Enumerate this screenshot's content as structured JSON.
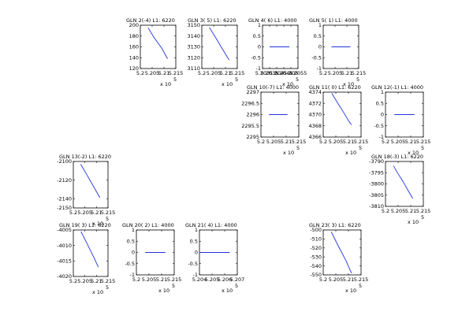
{
  "chart_data": [
    {
      "type": "line",
      "title": "GLN  2(-4) L1: 6220",
      "xlim": [
        5.2,
        5.215
      ],
      "ylim": [
        120,
        200
      ],
      "xticks": [
        "5.2",
        "5.205",
        "5.21",
        "5.215"
      ],
      "yticks": [
        "200",
        "180",
        "160",
        "140",
        "120"
      ],
      "x_multiplier": "x 10",
      "x_exponent": "5",
      "x": [
        5.2033,
        5.206,
        5.209,
        5.2115
      ],
      "y": [
        195,
        176,
        158,
        138
      ]
    },
    {
      "type": "line",
      "title": "GLN  3( 5) L1: 6220",
      "xlim": [
        5.2,
        5.215
      ],
      "ylim": [
        3110,
        3150
      ],
      "xticks": [
        "5.2",
        "5.205",
        "5.21",
        "5.215"
      ],
      "yticks": [
        "3150",
        "3140",
        "3130",
        "3120",
        "3110"
      ],
      "x_multiplier": "x 10",
      "x_exponent": "5",
      "x": [
        5.2032,
        5.206,
        5.209,
        5.2115
      ],
      "y": [
        3148,
        3138,
        3127,
        3118
      ]
    },
    {
      "type": "line",
      "title": "GLN  4( 6) L1: 4000",
      "xlim": [
        5.203,
        5.2055
      ],
      "ylim": [
        -1,
        1
      ],
      "xticks": [
        "5.203",
        "5.2035",
        "5.204",
        "5.2045",
        "5.205",
        "5.2055"
      ],
      "yticks": [
        "1",
        "0.5",
        "0",
        "-0.5",
        "-1"
      ],
      "x_multiplier": "x 10",
      "x_exponent": "5",
      "x": [
        5.2035,
        5.2049
      ],
      "y": [
        0,
        0
      ]
    },
    {
      "type": "line",
      "title": "GLN  5( 1) L1: 4000",
      "xlim": [
        5.2,
        5.215
      ],
      "ylim": [
        -1,
        1
      ],
      "xticks": [
        "5.2",
        "5.205",
        "5.21",
        "5.215"
      ],
      "yticks": [
        "1",
        "0.5",
        "0",
        "-0.5",
        "-1"
      ],
      "x_multiplier": "x 10",
      "x_exponent": "5",
      "x": [
        5.2035,
        5.2115
      ],
      "y": [
        0,
        0
      ]
    },
    {
      "type": "line",
      "title": "GLN 10(-7) L1: 4000",
      "xlim": [
        5.2,
        5.215
      ],
      "ylim": [
        2295,
        2297
      ],
      "xticks": [
        "5.2",
        "5.205",
        "5.21",
        "5.215"
      ],
      "yticks": [
        "2297",
        "2296.5",
        "2296",
        "2295.5",
        "2295"
      ],
      "x_multiplier": "x 10",
      "x_exponent": "5",
      "x": [
        5.2032,
        5.2105
      ],
      "y": [
        2296,
        2296
      ]
    },
    {
      "type": "line",
      "title": "GLN 11( 0) L1: 6220",
      "xlim": [
        5.2,
        5.215
      ],
      "ylim": [
        4366,
        4374
      ],
      "xticks": [
        "5.2",
        "5.205",
        "5.21",
        "5.215"
      ],
      "yticks": [
        "4374",
        "4372",
        "4370",
        "4368",
        "4366"
      ],
      "x_multiplier": "x 10",
      "x_exponent": "5",
      "x": [
        5.2034,
        5.205,
        5.2068,
        5.2085,
        5.21,
        5.2112
      ],
      "y": [
        4373.8,
        4372.6,
        4371.3,
        4370.1,
        4368.9,
        4368.2
      ]
    },
    {
      "type": "line",
      "title": "GLN 12(-1) L1: 4000",
      "xlim": [
        5.2,
        5.215
      ],
      "ylim": [
        -1,
        1
      ],
      "xticks": [
        "5.2",
        "5.205",
        "5.21",
        "5.215"
      ],
      "yticks": [
        "1",
        "0.5",
        "0",
        "-0.5",
        "-1"
      ],
      "x_multiplier": "x 10",
      "x_exponent": "5",
      "x": [
        5.2035,
        5.2115
      ],
      "y": [
        0,
        0
      ]
    },
    {
      "type": "line",
      "title": "GLN 13(-2) L1: 6220",
      "xlim": [
        5.2,
        5.215
      ],
      "ylim": [
        -2150,
        -2100
      ],
      "xticks": [
        "5.2",
        "5.205",
        "5.21",
        "5.215"
      ],
      "yticks": [
        "-2100",
        "-2120",
        "-2140",
        "-2150"
      ],
      "x_multiplier": "x 10",
      "x_exponent": "5",
      "x": [
        5.2032,
        5.206,
        5.209,
        5.2115
      ],
      "y": [
        -2103,
        -2115,
        -2128,
        -2139
      ]
    },
    {
      "type": "line",
      "title": "GLN 18(-3) L1: 6220",
      "xlim": [
        5.2,
        5.215
      ],
      "ylim": [
        -3810,
        -3790
      ],
      "xticks": [
        "5.2",
        "5.205",
        "5.21",
        "5.215"
      ],
      "yticks": [
        "-3790",
        "-3795",
        "-3800",
        "-3805",
        "-3810"
      ],
      "x_multiplier": "x 10",
      "x_exponent": "5",
      "x": [
        5.2032,
        5.205,
        5.207,
        5.209,
        5.2108
      ],
      "y": [
        -3792,
        -3795.5,
        -3799,
        -3803,
        -3806.5
      ]
    },
    {
      "type": "line",
      "title": "GLN 19( 3) L1: 6220",
      "xlim": [
        5.2,
        5.215
      ],
      "ylim": [
        -4020,
        -4005
      ],
      "xticks": [
        "5.2",
        "5.205",
        "5.21",
        "5.215"
      ],
      "yticks": [
        "-4005",
        "-4010",
        "-4015",
        "-4020"
      ],
      "x_multiplier": "x 10",
      "x_exponent": "5",
      "x": [
        5.2033,
        5.205,
        5.207,
        5.209,
        5.2108
      ],
      "y": [
        -4005.5,
        -4008,
        -4011,
        -4014,
        -4017
      ]
    },
    {
      "type": "line",
      "title": "GLN 20( 2) L1: 4000",
      "xlim": [
        5.2,
        5.215
      ],
      "ylim": [
        -1,
        1
      ],
      "xticks": [
        "5.2",
        "5.205",
        "5.21",
        "5.215"
      ],
      "yticks": [
        "1",
        "0.5",
        "0",
        "-0.5",
        "-1"
      ],
      "x_multiplier": "x 10",
      "x_exponent": "5",
      "x": [
        5.2035,
        5.2115
      ],
      "y": [
        0,
        0
      ]
    },
    {
      "type": "line",
      "title": "GLN 21( 4) L1: 4000",
      "xlim": [
        5.204,
        5.207
      ],
      "ylim": [
        -1,
        1
      ],
      "xticks": [
        "5.204",
        "5.205",
        "5.206",
        "5.207"
      ],
      "yticks": [
        "1",
        "0.5",
        "0",
        "-0.5",
        "-1"
      ],
      "x_multiplier": "x 10",
      "x_exponent": "5",
      "x": [
        5.204,
        5.2064
      ],
      "y": [
        0,
        0
      ]
    },
    {
      "type": "line",
      "title": "GLN 23( 3) L1: 6220",
      "xlim": [
        5.2,
        5.215
      ],
      "ylim": [
        -550,
        -500
      ],
      "xticks": [
        "5.2",
        "5.205",
        "5.21",
        "5.215"
      ],
      "yticks": [
        "-500",
        "-510",
        "-520",
        "-530",
        "-540",
        "-550"
      ],
      "x_multiplier": "x 10",
      "x_exponent": "5",
      "x": [
        5.2032,
        5.206,
        5.209,
        5.2112
      ],
      "y": [
        -502,
        -518,
        -534,
        -548
      ]
    }
  ],
  "style": {
    "line_color": "#2233dd",
    "axis_color": "#000000"
  }
}
